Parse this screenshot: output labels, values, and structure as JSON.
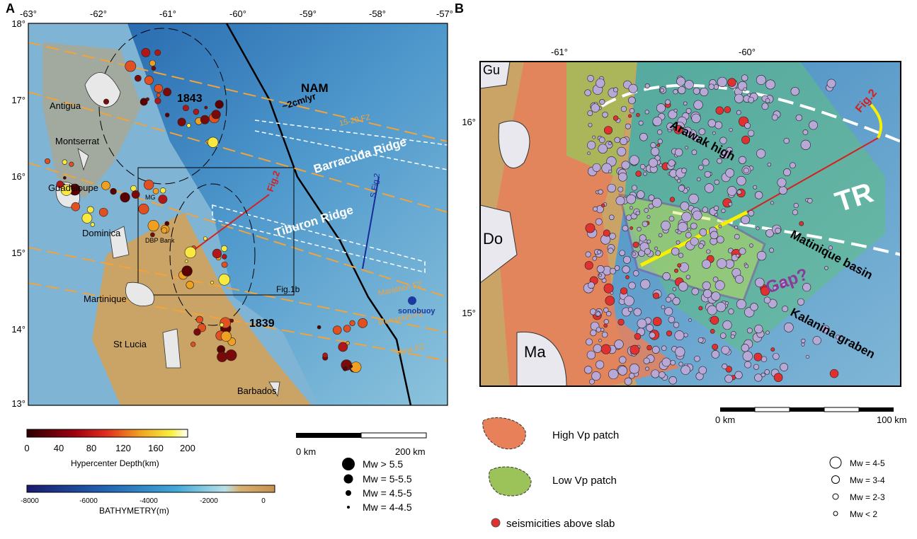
{
  "panel_a": {
    "label": "A",
    "lon_ticks": [
      "-63°",
      "-62°",
      "-61°",
      "-60°",
      "-59°",
      "-58°",
      "-57°"
    ],
    "lat_ticks": [
      "18°",
      "17°",
      "16°",
      "15°",
      "14°",
      "13°"
    ],
    "places": [
      "Antigua",
      "Montserrat",
      "Guadeloupe",
      "MG",
      "Dominica",
      "DBP Bank",
      "Martinique",
      "St Lucia",
      "Barbados"
    ],
    "features": [
      "NAM",
      "~2cm/yr",
      "Barracuda Ridge",
      "Tiburon Ridge",
      "15-20 FZ",
      "Marathon FZ",
      "Mercurius FZ",
      "Vane FZ",
      "sonobuoy",
      "Fig.2",
      "S Fig.2",
      "Fig.1b",
      "1843",
      "1839"
    ],
    "depth_legend": {
      "ticks": [
        "0",
        "40",
        "80",
        "120",
        "160",
        "200"
      ],
      "title": "Hypercenter Depth(km)"
    },
    "bathymetry_legend": {
      "ticks": [
        "-8000",
        "-6000",
        "-4000",
        "-2000",
        "0"
      ],
      "title": "BATHYMETRY(m)"
    },
    "scale_bar": [
      "0 km",
      "200 km"
    ],
    "magnitude_legend": [
      "Mw > 5.5",
      "Mw = 5-5.5",
      "Mw = 4.5-5",
      "Mw = 4-4.5"
    ]
  },
  "panel_b": {
    "label": "B",
    "lon_ticks": [
      "-61°",
      "-60°"
    ],
    "lat_ticks": [
      "16°",
      "15°"
    ],
    "places": [
      "Gu",
      "Do",
      "Ma"
    ],
    "features": [
      "Arawak high",
      "TR",
      "Fig.2",
      "Matinique basin",
      "Gap?",
      "Kalanina graben"
    ],
    "scale_bar": [
      "0 km",
      "100 km"
    ],
    "patch_legend": [
      "High Vp patch",
      "Low Vp patch",
      "seismicities above slab"
    ],
    "magnitude_legend": [
      "Mw = 4-5",
      "Mw = 3-4",
      "Mw = 2-3",
      "Mw < 2"
    ]
  }
}
